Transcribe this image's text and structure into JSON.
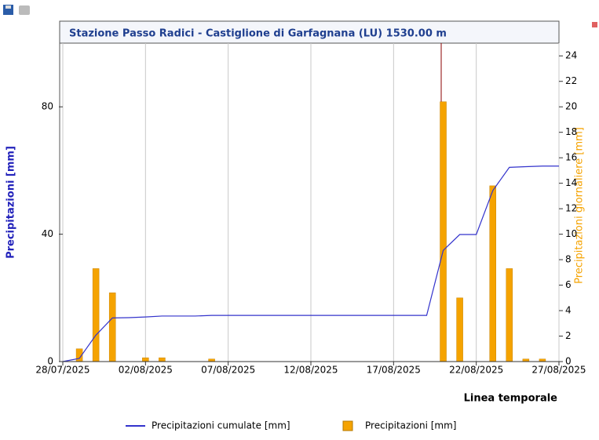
{
  "chart_data": {
    "type": "combo",
    "title": "Stazione Passo Radici - Castiglione di Garfagnana (LU) 1530.00 m",
    "xlabel": "Linea temporale",
    "ylabel": "Precipitazioni [mm]",
    "y2label": "Precipitazioni giornaliere [mm]",
    "x": [
      "28/07/2025",
      "29/07/2025",
      "30/07/2025",
      "31/07/2025",
      "01/08/2025",
      "02/08/2025",
      "03/08/2025",
      "04/08/2025",
      "05/08/2025",
      "06/08/2025",
      "07/08/2025",
      "08/08/2025",
      "09/08/2025",
      "10/08/2025",
      "11/08/2025",
      "12/08/2025",
      "13/08/2025",
      "14/08/2025",
      "15/08/2025",
      "16/08/2025",
      "17/08/2025",
      "18/08/2025",
      "19/08/2025",
      "20/08/2025",
      "21/08/2025",
      "22/08/2025",
      "23/08/2025",
      "24/08/2025",
      "25/08/2025",
      "26/08/2025",
      "27/08/2025"
    ],
    "series": [
      {
        "name": "Precipitazioni cumulate [mm]",
        "type": "line",
        "color": "#3333cc",
        "axis": "y",
        "values": [
          0,
          1,
          8.3,
          13.7,
          13.8,
          14,
          14.3,
          14.3,
          14.3,
          14.5,
          14.5,
          14.5,
          14.5,
          14.5,
          14.5,
          14.5,
          14.5,
          14.5,
          14.5,
          14.5,
          14.5,
          14.5,
          14.5,
          34.9,
          39.9,
          39.9,
          53.7,
          61,
          61.2,
          61.4,
          61.4
        ]
      },
      {
        "name": "Precipitazioni [mm]",
        "type": "bar",
        "color": "#f5a300",
        "axis": "y2",
        "values": [
          null,
          1,
          7.3,
          5.4,
          null,
          0.3,
          0.3,
          null,
          null,
          0.2,
          null,
          null,
          null,
          null,
          null,
          null,
          null,
          null,
          null,
          null,
          null,
          null,
          null,
          20.4,
          5,
          null,
          13.8,
          7.3,
          0.2,
          0.2,
          null
        ]
      }
    ],
    "xlim": [
      "28/07/2025",
      "27/08/2025"
    ],
    "xticks": [
      "28/07/2025",
      "02/08/2025",
      "07/08/2025",
      "12/08/2025",
      "17/08/2025",
      "22/08/2025",
      "27/08/2025"
    ],
    "ylim": [
      0,
      100
    ],
    "yticks": [
      0,
      40,
      80
    ],
    "y2lim": [
      0,
      25
    ],
    "y2ticks": [
      0,
      2,
      4,
      6,
      8,
      10,
      12,
      14,
      16,
      18,
      20,
      22,
      24
    ],
    "grid": true
  }
}
